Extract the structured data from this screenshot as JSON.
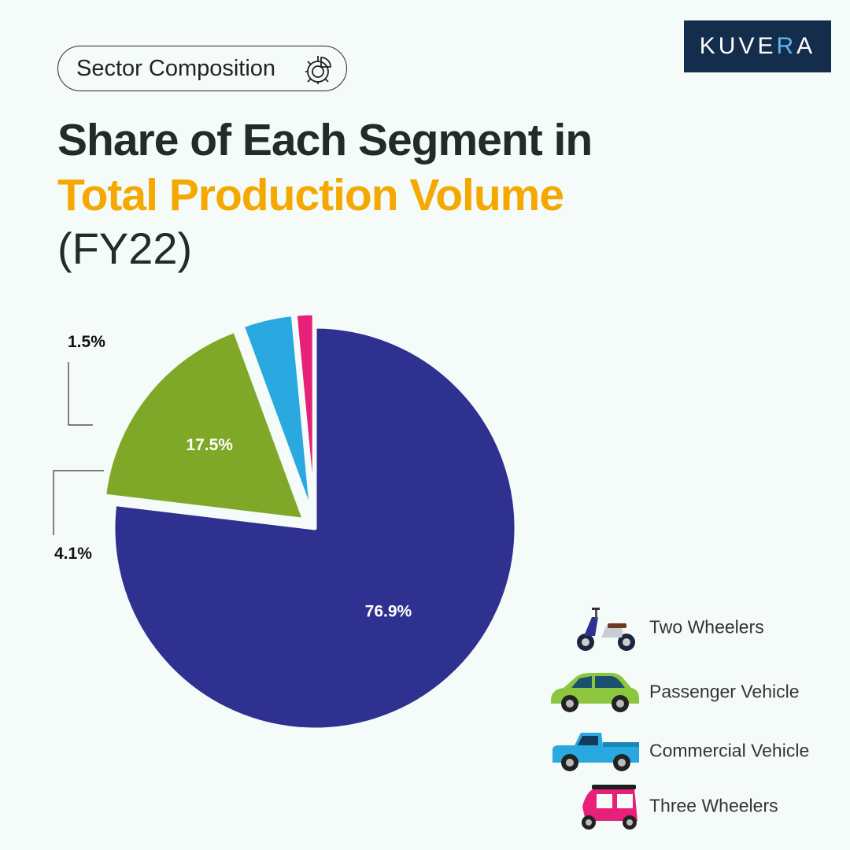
{
  "badge": {
    "label": "Sector Composition",
    "icon": "pie-chart-gear-icon"
  },
  "logo": {
    "text_main": "KUVE",
    "text_accent": "R",
    "text_end": "A",
    "background": "#142d4c",
    "accent": "#5ab7ef"
  },
  "title": {
    "line1": "Share of Each Segment in",
    "line2": "Total Production Volume",
    "highlight_color": "#f5a800"
  },
  "subtitle": "(FY22)",
  "chart_data": {
    "type": "pie",
    "title": "Share of Each Segment in Total Production Volume",
    "subtitle": "(FY22)",
    "categories": [
      "Two Wheelers",
      "Passenger Vehicle",
      "Commercial Vehicle",
      "Three Wheelers"
    ],
    "values": [
      76.9,
      17.5,
      4.1,
      1.5
    ],
    "labels": [
      "76.9%",
      "17.5%",
      "4.1%",
      "1.5%"
    ],
    "colors": [
      "#2e3190",
      "#7fa828",
      "#2aa9e0",
      "#e7217a"
    ],
    "exploded": [
      "Passenger Vehicle",
      "Commercial Vehicle",
      "Three Wheelers"
    ],
    "legend_position": "bottom-right"
  },
  "legend": [
    {
      "label": "Two Wheelers",
      "icon": "scooter-icon"
    },
    {
      "label": "Passenger Vehicle",
      "icon": "car-icon"
    },
    {
      "label": "Commercial Vehicle",
      "icon": "pickup-truck-icon"
    },
    {
      "label": "Three Wheelers",
      "icon": "auto-rickshaw-icon"
    }
  ]
}
